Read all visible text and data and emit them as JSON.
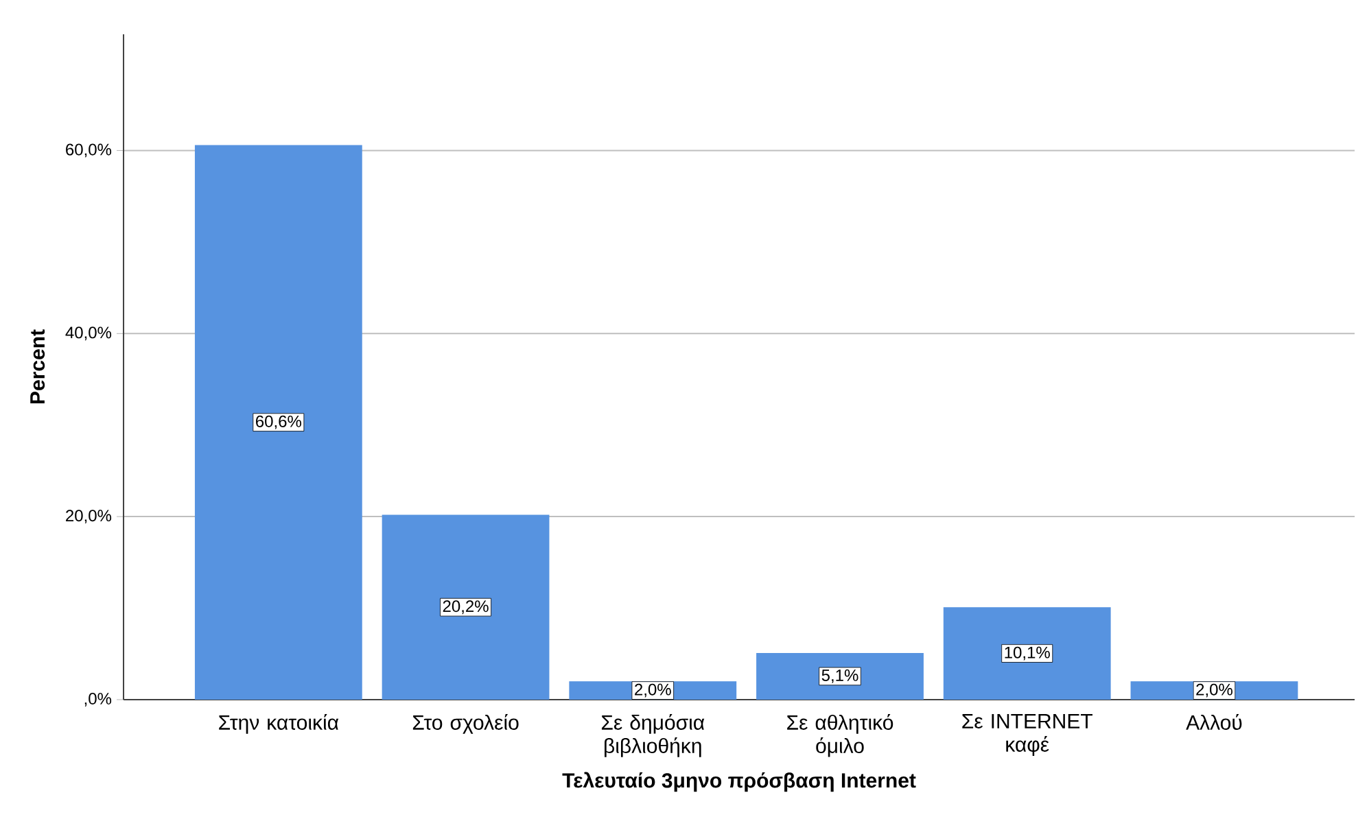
{
  "chart_data": {
    "type": "bar",
    "xlabel": "Τελευταίο 3μηνο πρόσβαση Internet",
    "ylabel": "Percent",
    "categories": [
      "Στην κατοικία",
      "Στο σχολείο",
      "Σε δημόσια βιβλιοθήκη",
      "Σε αθλητικό όμιλο",
      "Σε INTERNET καφέ",
      "Αλλού"
    ],
    "values": [
      60.6,
      20.2,
      2.0,
      5.1,
      10.1,
      2.0
    ],
    "value_labels": [
      "60,6%",
      "20,2%",
      "2,0%",
      "5,1%",
      "10,1%",
      "2,0%"
    ],
    "color": "#5793e0",
    "ylim": [
      0,
      72.7
    ],
    "yticks": [
      {
        "value": 0,
        "label": ",0%"
      },
      {
        "value": 20,
        "label": "20,0%"
      },
      {
        "value": 40,
        "label": "40,0%"
      },
      {
        "value": 60,
        "label": "60,0%"
      }
    ],
    "grid": "y"
  }
}
